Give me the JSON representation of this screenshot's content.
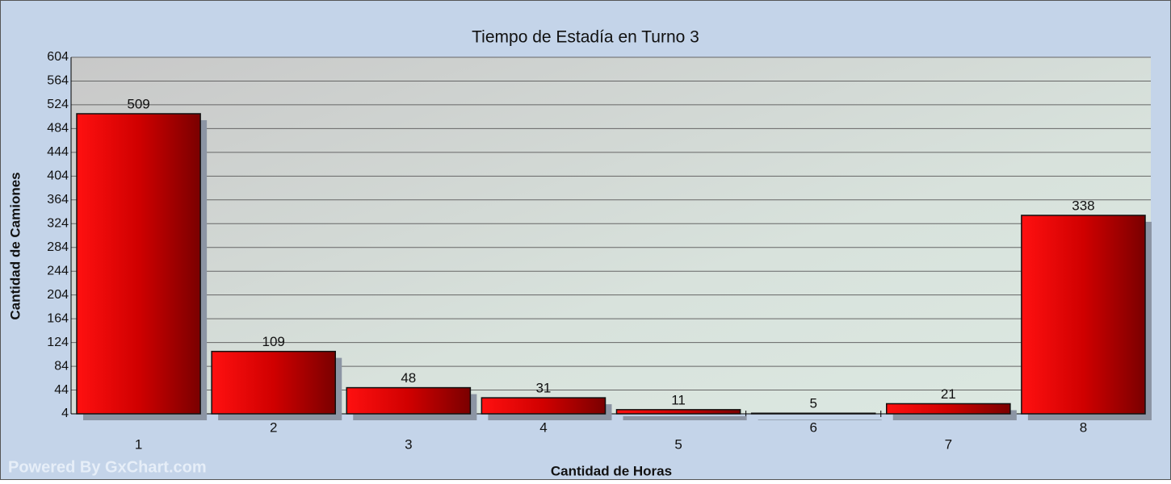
{
  "chart_data": {
    "type": "bar",
    "title": "Tiempo de Estadía en Turno 3",
    "x_label": "Cantidad de Horas",
    "y_label": "Cantidad de Camiones",
    "watermark": "Powered By GxChart.com",
    "categories": [
      "1",
      "2",
      "3",
      "4",
      "5",
      "6",
      "7",
      "8"
    ],
    "values": [
      509,
      109,
      48,
      31,
      11,
      5,
      21,
      338
    ],
    "color": "#e00000",
    "ylim": [
      4,
      604
    ],
    "yticks": [
      4,
      44,
      84,
      124,
      164,
      204,
      244,
      284,
      324,
      364,
      404,
      444,
      484,
      524,
      564,
      604
    ],
    "grid": true
  }
}
